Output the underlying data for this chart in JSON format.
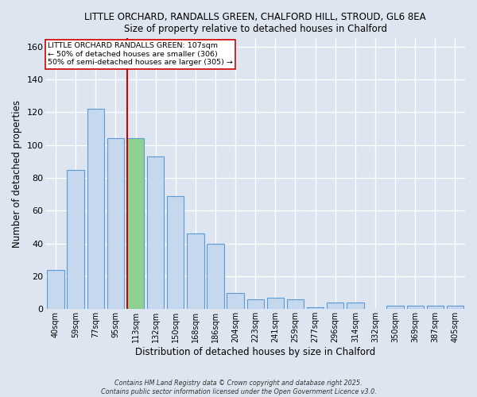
{
  "title_line1": "LITTLE ORCHARD, RANDALLS GREEN, CHALFORD HILL, STROUD, GL6 8EA",
  "title_line2": "Size of property relative to detached houses in Chalford",
  "xlabel": "Distribution of detached houses by size in Chalford",
  "ylabel": "Number of detached properties",
  "categories": [
    "40sqm",
    "59sqm",
    "77sqm",
    "95sqm",
    "113sqm",
    "132sqm",
    "150sqm",
    "168sqm",
    "186sqm",
    "204sqm",
    "223sqm",
    "241sqm",
    "259sqm",
    "277sqm",
    "296sqm",
    "314sqm",
    "332sqm",
    "350sqm",
    "369sqm",
    "387sqm",
    "405sqm"
  ],
  "values": [
    24,
    85,
    122,
    104,
    104,
    93,
    69,
    46,
    40,
    10,
    6,
    7,
    6,
    1,
    4,
    4,
    0,
    2,
    2,
    2,
    2
  ],
  "bar_color": "#c5d8ee",
  "bar_edge_color": "#5b9bd5",
  "green_bar_index": 4,
  "green_bar_color": "#90d090",
  "green_bar_edge": "#5b9bd5",
  "red_line_color": "#cc0000",
  "red_line_x": 3.575,
  "annotation_text": "LITTLE ORCHARD RANDALLS GREEN: 107sqm\n← 50% of detached houses are smaller (306)\n50% of semi-detached houses are larger (305) →",
  "annotation_box_color": "#ffffff",
  "annotation_box_edge": "#cc0000",
  "ylim": [
    0,
    165
  ],
  "yticks": [
    0,
    20,
    40,
    60,
    80,
    100,
    120,
    140,
    160
  ],
  "background_color": "#dde6f0",
  "grid_color": "#ffffff",
  "footer_line1": "Contains HM Land Registry data © Crown copyright and database right 2025.",
  "footer_line2": "Contains public sector information licensed under the Open Government Licence v3.0."
}
